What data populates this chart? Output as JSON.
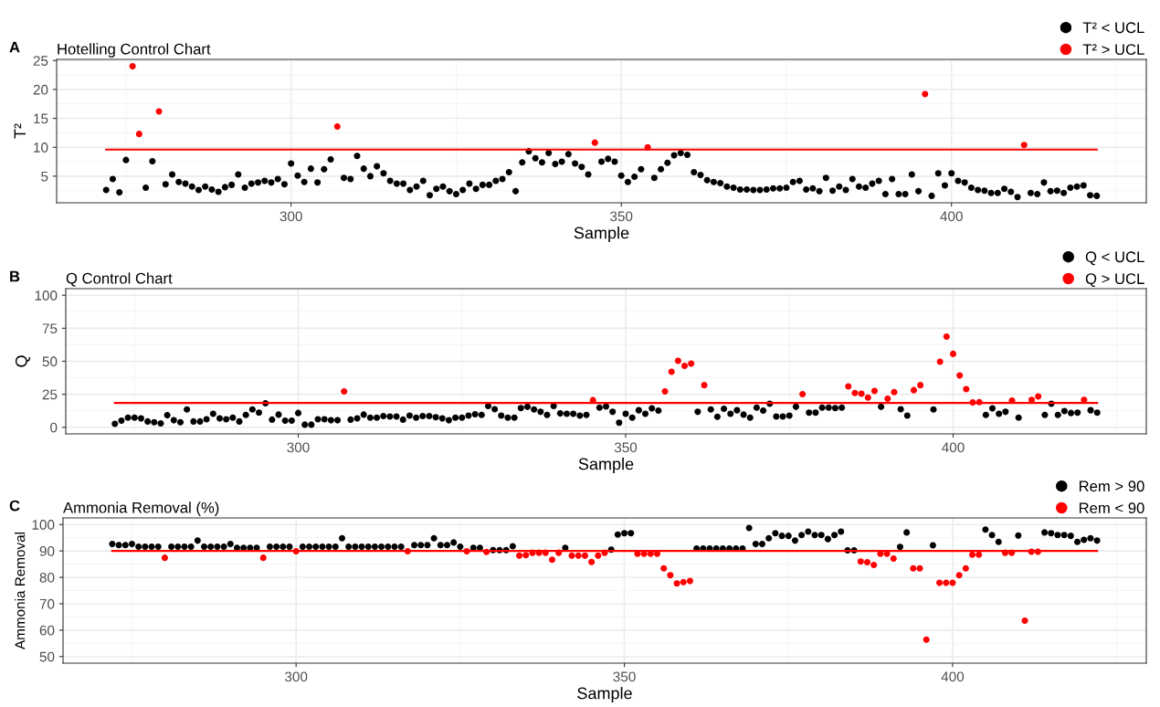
{
  "chart_data": [
    {
      "type": "scatter",
      "title": "Hotelling Control Chart",
      "annotations": [
        "A"
      ],
      "xlabel": "Sample",
      "ylabel": "T²",
      "xlim": [
        264.5,
        429.5
      ],
      "xticks": [
        300,
        350,
        400
      ],
      "ylim": [
        0.4,
        25.2
      ],
      "yticks": [
        5,
        10,
        15,
        20,
        25
      ],
      "grid": true,
      "legend": "top right",
      "marker": "circle",
      "series": [
        {
          "name": "T² < UCL",
          "color": "#000000",
          "x": [
            272,
            273,
            274,
            275,
            278,
            279,
            281,
            282,
            283,
            284,
            285,
            286,
            287,
            288,
            289,
            290,
            291,
            292,
            293,
            294,
            295,
            296,
            297,
            298,
            299,
            300,
            301,
            302,
            303,
            304,
            305,
            306,
            308,
            309,
            310,
            311,
            312,
            313,
            314,
            315,
            316,
            317,
            318,
            319,
            320,
            321,
            322,
            323,
            324,
            325,
            326,
            327,
            328,
            329,
            330,
            331,
            332,
            333,
            334,
            335,
            336,
            337,
            338,
            339,
            340,
            341,
            342,
            343,
            344,
            345,
            347,
            348,
            349,
            350,
            351,
            352,
            353,
            355,
            356,
            357,
            358,
            359,
            360,
            361,
            362,
            363,
            364,
            365,
            366,
            367,
            368,
            369,
            370,
            371,
            372,
            373,
            374,
            375,
            376,
            377,
            378,
            379,
            380,
            381,
            382,
            383,
            384,
            385,
            386,
            387,
            388,
            389,
            390,
            391,
            392,
            393,
            394,
            395,
            397,
            398,
            399,
            400,
            401,
            402,
            403,
            404,
            405,
            406,
            407,
            408,
            409,
            410,
            412,
            413,
            414,
            415,
            416,
            417,
            418,
            419,
            420,
            421,
            422
          ],
          "values": [
            2.6,
            4.5,
            2.2,
            7.8,
            3.0,
            7.6,
            3.6,
            5.3,
            4.0,
            3.7,
            3.2,
            2.6,
            3.2,
            2.7,
            2.3,
            3.1,
            3.5,
            5.3,
            3.0,
            3.7,
            3.9,
            4.2,
            3.9,
            4.5,
            3.6,
            7.2,
            5.1,
            4.0,
            6.3,
            3.9,
            6.2,
            7.9,
            4.7,
            4.5,
            8.5,
            6.3,
            5.0,
            6.7,
            5.5,
            4.2,
            3.7,
            3.7,
            2.6,
            3.2,
            4.2,
            1.7,
            2.8,
            3.2,
            2.4,
            1.9,
            2.6,
            3.7,
            2.8,
            3.5,
            3.5,
            4.2,
            4.5,
            5.7,
            2.4,
            7.4,
            9.3,
            8.1,
            7.4,
            9.0,
            7.1,
            7.5,
            8.8,
            7.2,
            6.6,
            5.3,
            7.5,
            8.0,
            7.5,
            5.1,
            4.0,
            4.9,
            6.2,
            4.7,
            6.2,
            7.3,
            8.6,
            9.0,
            8.7,
            5.7,
            5.2,
            4.3,
            4.0,
            3.8,
            3.2,
            3.0,
            2.7,
            2.7,
            2.6,
            2.6,
            2.7,
            2.9,
            2.9,
            3.0,
            4.0,
            4.2,
            2.7,
            2.9,
            2.4,
            4.7,
            2.5,
            3.2,
            2.6,
            4.5,
            3.2,
            3.0,
            3.7,
            4.2,
            1.9,
            4.5,
            1.9,
            1.9,
            5.3,
            2.4,
            1.6,
            5.5,
            3.4,
            5.5,
            4.2,
            3.9,
            3.0,
            2.6,
            2.5,
            2.1,
            2.1,
            2.8,
            2.3,
            1.4,
            2.1,
            1.9,
            3.9,
            2.4,
            2.5,
            2.1,
            3.0,
            3.2,
            3.4,
            1.7,
            1.6
          ]
        },
        {
          "name": "T² > UCL",
          "color": "#ff0000",
          "x": [
            276,
            277,
            280,
            307,
            346,
            354,
            396,
            411
          ],
          "values": [
            24.0,
            12.3,
            16.2,
            13.6,
            10.8,
            10.0,
            19.2,
            10.4
          ]
        },
        {
          "type": "line",
          "color": "#ff0000",
          "x": [
            272,
            422
          ],
          "values": [
            9.6,
            9.6
          ],
          "marker": "none"
        }
      ]
    },
    {
      "type": "scatter",
      "title": "Q Control Chart",
      "annotations": [
        "B"
      ],
      "xlabel": "Sample",
      "ylabel": "Q",
      "xlim": [
        264.5,
        429.5
      ],
      "xticks": [
        300,
        350,
        400
      ],
      "ylim": [
        -5,
        105
      ],
      "yticks": [
        0,
        25,
        50,
        75,
        100
      ],
      "grid": true,
      "legend": "top right",
      "marker": "circle",
      "series": [
        {
          "name": "Q < UCL",
          "color": "#000000",
          "x": [
            272,
            273,
            274,
            275,
            276,
            277,
            278,
            279,
            280,
            281,
            282,
            283,
            284,
            285,
            286,
            287,
            288,
            289,
            290,
            291,
            292,
            293,
            294,
            295,
            296,
            297,
            298,
            299,
            300,
            301,
            302,
            303,
            304,
            305,
            306,
            308,
            309,
            310,
            311,
            312,
            313,
            314,
            315,
            316,
            317,
            318,
            319,
            320,
            321,
            322,
            323,
            324,
            325,
            326,
            327,
            328,
            329,
            330,
            331,
            332,
            333,
            334,
            335,
            336,
            337,
            338,
            339,
            340,
            341,
            342,
            343,
            344,
            346,
            347,
            348,
            349,
            350,
            351,
            352,
            353,
            354,
            355,
            361,
            363,
            364,
            365,
            366,
            367,
            368,
            369,
            370,
            371,
            372,
            373,
            374,
            375,
            376,
            378,
            379,
            380,
            381,
            382,
            383,
            389,
            392,
            393,
            397,
            405,
            406,
            407,
            408,
            410,
            414,
            415,
            416,
            417,
            418,
            419,
            421,
            422
          ],
          "values": [
            2.6,
            5.0,
            7.3,
            7.3,
            6.7,
            4.4,
            3.8,
            2.9,
            9.1,
            5.3,
            3.8,
            13.5,
            4.4,
            4.4,
            6.1,
            10.2,
            6.7,
            6.1,
            7.3,
            4.4,
            9.4,
            13.5,
            11.1,
            18.2,
            5.8,
            9.6,
            5.0,
            5.0,
            10.8,
            2.0,
            2.0,
            6.1,
            6.1,
            5.3,
            5.3,
            5.8,
            6.7,
            9.6,
            7.3,
            7.3,
            8.5,
            8.2,
            8.2,
            5.8,
            8.8,
            7.3,
            8.5,
            8.5,
            7.6,
            6.7,
            5.3,
            7.3,
            7.3,
            8.8,
            9.9,
            9.4,
            16.1,
            13.7,
            8.8,
            7.3,
            7.3,
            14.6,
            15.5,
            13.5,
            11.7,
            9.4,
            16.1,
            10.5,
            10.2,
            10.2,
            8.8,
            9.4,
            14.9,
            15.8,
            11.7,
            3.5,
            10.2,
            7.3,
            12.9,
            10.2,
            14.3,
            12.6,
            11.7,
            13.5,
            7.9,
            14.0,
            10.2,
            12.9,
            9.6,
            7.3,
            14.9,
            12.6,
            17.8,
            8.2,
            8.2,
            8.8,
            15.5,
            11.1,
            11.1,
            14.9,
            14.9,
            14.6,
            14.9,
            15.5,
            13.7,
            8.8,
            13.5,
            9.4,
            14.3,
            10.2,
            11.7,
            7.3,
            9.4,
            17.8,
            9.4,
            12.3,
            10.8,
            11.1,
            12.9,
            11.1
          ]
        },
        {
          "name": "Q > UCL",
          "color": "#ff0000",
          "x": [
            307,
            345,
            356,
            357,
            358,
            359,
            360,
            362,
            377,
            384,
            385,
            386,
            387,
            388,
            390,
            391,
            394,
            395,
            398,
            399,
            400,
            401,
            402,
            403,
            404,
            409,
            412,
            413,
            420
          ],
          "values": [
            27.2,
            20.5,
            27.2,
            42.1,
            50.3,
            46.5,
            48.2,
            31.9,
            25.1,
            31.0,
            26.0,
            25.4,
            22.5,
            27.5,
            21.6,
            26.6,
            28.1,
            31.9,
            49.7,
            68.7,
            55.6,
            39.2,
            28.9,
            18.8,
            19.0,
            20.2,
            20.8,
            23.4,
            20.8
          ]
        },
        {
          "type": "line",
          "color": "#ff0000",
          "x": [
            272,
            422
          ],
          "values": [
            18.5,
            18.5
          ],
          "marker": "none"
        }
      ]
    },
    {
      "type": "scatter",
      "title": "Ammonia Removal (%)",
      "annotations": [
        "C"
      ],
      "xlabel": "Sample",
      "ylabel": "Ammonia Removal",
      "xlim": [
        264.5,
        429.5
      ],
      "xticks": [
        300,
        350,
        400
      ],
      "ylim": [
        47.5,
        102.5
      ],
      "yticks": [
        50,
        60,
        70,
        80,
        90,
        100
      ],
      "grid": true,
      "legend": "top right",
      "marker": "circle",
      "series": [
        {
          "name": "Rem > 90",
          "color": "#000000",
          "x": [
            272,
            273,
            274,
            275,
            276,
            277,
            278,
            279,
            281,
            282,
            283,
            284,
            285,
            286,
            287,
            288,
            289,
            290,
            291,
            292,
            293,
            294,
            296,
            297,
            298,
            299,
            301,
            302,
            303,
            304,
            305,
            306,
            307,
            308,
            309,
            310,
            311,
            312,
            313,
            314,
            315,
            316,
            318,
            319,
            320,
            321,
            322,
            323,
            324,
            325,
            327,
            328,
            330,
            331,
            332,
            333,
            341,
            348,
            349,
            350,
            351,
            361,
            362,
            363,
            364,
            365,
            366,
            367,
            368,
            369,
            370,
            371,
            372,
            373,
            374,
            375,
            376,
            377,
            378,
            379,
            380,
            381,
            382,
            383,
            384,
            385,
            392,
            393,
            397,
            405,
            406,
            407,
            410,
            414,
            415,
            416,
            417,
            418,
            419,
            420,
            421,
            422
          ],
          "values": [
            92.6,
            92.2,
            92.2,
            92.6,
            91.6,
            91.6,
            91.6,
            91.6,
            91.6,
            91.6,
            91.6,
            91.6,
            93.9,
            91.6,
            91.6,
            91.6,
            91.6,
            92.6,
            91.2,
            91.2,
            91.2,
            91.2,
            91.6,
            91.6,
            91.6,
            91.6,
            91.6,
            91.6,
            91.6,
            91.6,
            91.6,
            91.6,
            94.8,
            91.6,
            91.6,
            91.6,
            91.6,
            91.6,
            91.6,
            91.6,
            91.6,
            91.6,
            92.2,
            92.2,
            92.2,
            94.8,
            92.2,
            92.2,
            93.2,
            91.6,
            91.2,
            91.2,
            90.3,
            90.3,
            90.3,
            91.8,
            91.2,
            90.5,
            96.2,
            96.7,
            96.7,
            90.9,
            90.9,
            90.9,
            90.9,
            90.9,
            90.9,
            90.9,
            90.9,
            98.7,
            92.6,
            92.6,
            94.8,
            96.7,
            95.7,
            95.7,
            93.9,
            96.0,
            97.3,
            96.0,
            96.0,
            94.5,
            96.0,
            97.3,
            90.2,
            90.2,
            91.5,
            97.0,
            92.1,
            98.1,
            96.0,
            93.4,
            95.8,
            97.0,
            96.7,
            96.0,
            96.0,
            95.7,
            93.4,
            94.2,
            94.8,
            93.9
          ]
        },
        {
          "name": "Rem < 90",
          "color": "#ff0000",
          "x": [
            280,
            295,
            300,
            317,
            326,
            329,
            334,
            335,
            336,
            337,
            338,
            339,
            340,
            342,
            343,
            344,
            345,
            346,
            347,
            352,
            353,
            354,
            355,
            356,
            357,
            358,
            359,
            360,
            386,
            387,
            388,
            389,
            390,
            391,
            394,
            395,
            396,
            398,
            399,
            400,
            401,
            402,
            403,
            404,
            408,
            409,
            411,
            412,
            413
          ],
          "values": [
            87.4,
            87.4,
            89.9,
            89.9,
            89.9,
            89.6,
            88.2,
            88.4,
            89.3,
            89.3,
            89.3,
            86.7,
            89.3,
            88.2,
            88.2,
            88.2,
            85.8,
            88.2,
            89.3,
            88.9,
            88.9,
            88.9,
            88.9,
            83.4,
            80.8,
            77.7,
            78.2,
            78.6,
            86.0,
            85.7,
            84.7,
            88.9,
            88.9,
            87.1,
            83.4,
            83.4,
            56.4,
            77.9,
            77.9,
            77.9,
            80.8,
            83.4,
            88.6,
            88.6,
            89.3,
            89.3,
            63.6,
            89.7,
            89.7
          ]
        },
        {
          "type": "line",
          "color": "#ff0000",
          "x": [
            272,
            422
          ],
          "values": [
            90,
            90
          ],
          "marker": "none"
        }
      ]
    }
  ]
}
